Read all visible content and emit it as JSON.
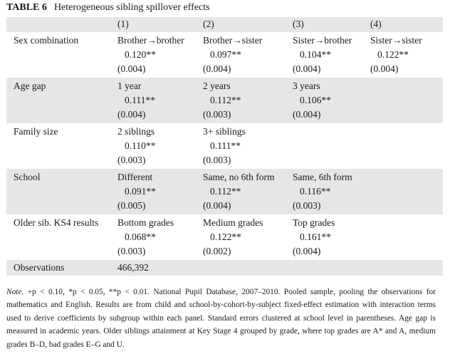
{
  "caption": {
    "label": "TABLE 6",
    "title": "Heterogeneous sibling spillover effects"
  },
  "columns": [
    "(1)",
    "(2)",
    "(3)",
    "(4)"
  ],
  "panels": [
    {
      "label": "Sex combination",
      "groups": [
        "Brother→brother",
        "Brother→sister",
        "Sister→brother",
        "Sister→sister"
      ],
      "coefs": [
        "0.120**",
        "0.097**",
        "0.104**",
        "0.122**"
      ],
      "ses": [
        "(0.004)",
        "(0.004)",
        "(0.004)",
        "(0.004)"
      ]
    },
    {
      "label": "Age gap",
      "groups": [
        "1 year",
        "2 years",
        "3 years",
        ""
      ],
      "coefs": [
        "0.111**",
        "0.112**",
        "0.106**",
        ""
      ],
      "ses": [
        "(0.004)",
        "(0.003)",
        "(0.004)",
        ""
      ]
    },
    {
      "label": "Family size",
      "groups": [
        "2 siblings",
        "3+ siblings",
        "",
        ""
      ],
      "coefs": [
        "0.110**",
        "0.111**",
        "",
        ""
      ],
      "ses": [
        "(0.003)",
        "(0.003)",
        "",
        ""
      ]
    },
    {
      "label": "School",
      "groups": [
        "Different",
        "Same, no 6th form",
        "Same, 6th form",
        ""
      ],
      "coefs": [
        "0.091**",
        "0.112**",
        "0.116**",
        ""
      ],
      "ses": [
        "(0.005)",
        "(0.004)",
        "(0.003)",
        ""
      ]
    },
    {
      "label": "Older sib. KS4 results",
      "groups": [
        "Bottom grades",
        "Medium grades",
        "Top grades",
        ""
      ],
      "coefs": [
        "0.068**",
        "0.122**",
        "0.161**",
        ""
      ],
      "ses": [
        "(0.003)",
        "(0.002)",
        "(0.004)",
        ""
      ]
    }
  ],
  "observations": {
    "label": "Observations",
    "value": "466,392"
  },
  "note": {
    "lead": "Note.",
    "text": " +p < 0.10, *p < 0.05, **p < 0.01. National Pupil Database, 2007–2010. Pooled sample, pooling the observations for mathematics and English. Results are from child and school-by-cohort-by-subject fixed-effect estimation with interaction terms used to derive coefficients by subgroup within each panel. Standard errors clustered at school level in parentheses. Age gap is measured in academic years. Older siblings attainment at Key Stage 4 grouped by grade, where top grades are A* and A, medium grades B–D, bad grades E–G and U."
  }
}
